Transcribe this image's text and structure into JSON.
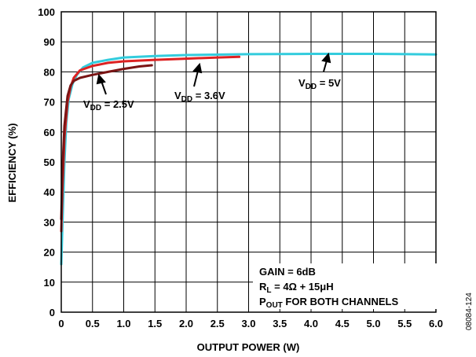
{
  "chart_data": {
    "type": "line",
    "xlabel": "OUTPUT POWER (W)",
    "ylabel": "EFFICIENCY (%)",
    "xlim": [
      0,
      6.0
    ],
    "ylim": [
      0,
      100
    ],
    "x_ticks": [
      "0",
      "0.5",
      "1.0",
      "1.5",
      "2.0",
      "2.5",
      "3.0",
      "3.5",
      "4.0",
      "4.5",
      "5.0",
      "5.5",
      "6.0"
    ],
    "y_ticks": [
      "0",
      "10",
      "20",
      "30",
      "40",
      "50",
      "60",
      "70",
      "80",
      "90",
      "100"
    ],
    "grid": true,
    "series": [
      {
        "name": "VDD = 5V",
        "color": "#33ccdd",
        "points": [
          [
            0.0,
            16
          ],
          [
            0.02,
            30
          ],
          [
            0.05,
            50
          ],
          [
            0.08,
            63
          ],
          [
            0.12,
            71
          ],
          [
            0.18,
            76
          ],
          [
            0.25,
            79
          ],
          [
            0.35,
            81.5
          ],
          [
            0.5,
            83
          ],
          [
            0.75,
            84
          ],
          [
            1.0,
            84.8
          ],
          [
            1.5,
            85.3
          ],
          [
            2.0,
            85.6
          ],
          [
            3.0,
            85.9
          ],
          [
            4.0,
            86
          ],
          [
            5.0,
            86
          ],
          [
            6.0,
            85.8
          ]
        ]
      },
      {
        "name": "VDD = 3.6V",
        "color": "#dd2222",
        "points": [
          [
            0.0,
            27
          ],
          [
            0.02,
            42
          ],
          [
            0.05,
            58
          ],
          [
            0.1,
            70
          ],
          [
            0.15,
            75
          ],
          [
            0.2,
            78
          ],
          [
            0.3,
            80.5
          ],
          [
            0.5,
            82
          ],
          [
            0.75,
            83
          ],
          [
            1.0,
            83.5
          ],
          [
            1.5,
            84
          ],
          [
            2.0,
            84.4
          ],
          [
            2.5,
            84.8
          ],
          [
            2.85,
            85
          ]
        ]
      },
      {
        "name": "VDD = 2.5V",
        "color": "#7a1515",
        "points": [
          [
            0.0,
            31
          ],
          [
            0.02,
            48
          ],
          [
            0.05,
            62
          ],
          [
            0.1,
            72
          ],
          [
            0.15,
            75.5
          ],
          [
            0.2,
            77
          ],
          [
            0.3,
            78
          ],
          [
            0.5,
            79
          ],
          [
            0.75,
            80
          ],
          [
            1.0,
            81
          ],
          [
            1.25,
            81.8
          ],
          [
            1.45,
            82.2
          ]
        ]
      }
    ],
    "annotations": {
      "vdd25": {
        "main": "V",
        "sub": "DD",
        "rest": " = 2.5V"
      },
      "vdd36": {
        "main": "V",
        "sub": "DD",
        "rest": " = 3.6V"
      },
      "vdd5": {
        "main": "V",
        "sub": "DD",
        "rest": " = 5V"
      },
      "gain": "GAIN = 6dB",
      "rl": {
        "main": "R",
        "sub": "L",
        "rest": " = 4Ω + 15μH"
      },
      "pout": {
        "main": "P",
        "sub": "OUT",
        "rest": " FOR BOTH CHANNELS"
      }
    },
    "figure_id": "08084-124"
  }
}
